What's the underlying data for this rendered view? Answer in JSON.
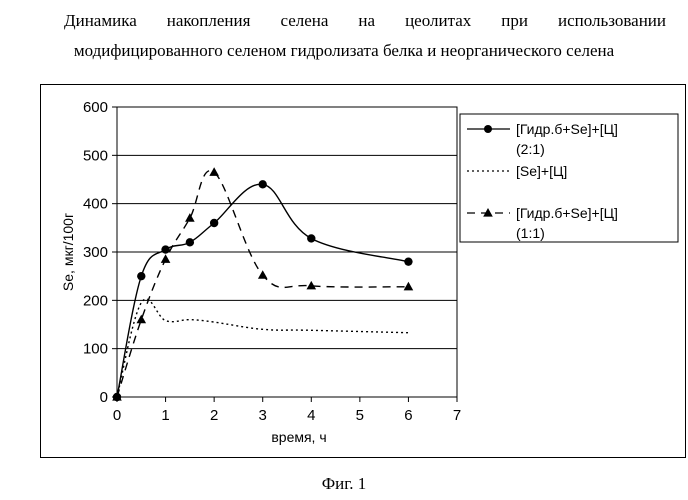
{
  "figure": {
    "title_line1": "Динамика накопления селена на цеолитах при использовании",
    "title_line2": "модифицированного селеном гидролизата белка и неорганического селена",
    "caption": "Фиг. 1"
  },
  "chart_data": {
    "type": "line",
    "xlabel": "время, ч",
    "ylabel": "Se, мкг/100г",
    "xlim": [
      0,
      7
    ],
    "ylim": [
      0,
      600
    ],
    "xticks": [
      0,
      1,
      2,
      3,
      4,
      5,
      6,
      7
    ],
    "yticks": [
      0,
      100,
      200,
      300,
      400,
      500,
      600
    ],
    "grid": "horizontal",
    "legend_position": "right",
    "series": [
      {
        "name": "[Гидр.б+Se]+[Ц] (2:1)",
        "style": "solid",
        "marker": "circle",
        "x": [
          0,
          0.5,
          1,
          1.5,
          2,
          3,
          4,
          6
        ],
        "y": [
          0,
          250,
          305,
          320,
          360,
          440,
          328,
          280
        ]
      },
      {
        "name": "[Se]+[Ц]",
        "style": "dotted",
        "marker": "none",
        "x": [
          0,
          0.5,
          1,
          1.5,
          2,
          3,
          4,
          6
        ],
        "y": [
          0,
          195,
          158,
          160,
          155,
          140,
          138,
          133
        ]
      },
      {
        "name": "[Гидр.б+Se]+[Ц] (1:1)",
        "style": "dashed",
        "marker": "triangle",
        "x": [
          0,
          0.5,
          1,
          1.5,
          2,
          3,
          4,
          6
        ],
        "y": [
          0,
          160,
          285,
          370,
          465,
          252,
          230,
          228
        ]
      }
    ]
  },
  "legend": {
    "s1_line1": "[Гидр.б+Se]+[Ц]",
    "s1_line2": "(2:1)",
    "s2_line1": "[Se]+[Ц]",
    "s3_line1": "[Гидр.б+Se]+[Ц]",
    "s3_line2": "(1:1)"
  }
}
